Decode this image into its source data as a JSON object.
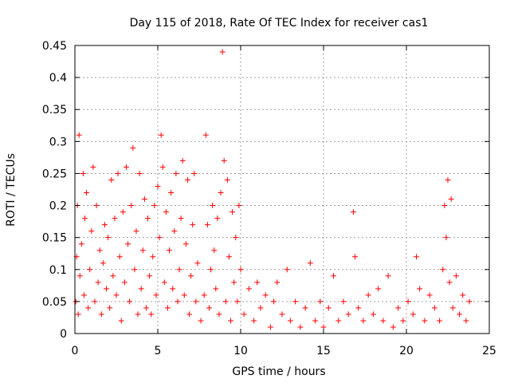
{
  "chart_data": {
    "type": "scatter",
    "title": "Day 115 of 2018, Rate Of TEC Index for receiver cas1",
    "xlabel": "GPS time / hours",
    "ylabel": "ROTI / TECUs",
    "xlim": [
      0,
      25
    ],
    "ylim": [
      0,
      0.45
    ],
    "xticks": [
      "0",
      "5",
      "10",
      "15",
      "20",
      "25"
    ],
    "yticks": [
      "0",
      "0.05",
      "0.1",
      "0.15",
      "0.2",
      "0.25",
      "0.3",
      "0.35",
      "0.4",
      "0.45"
    ],
    "grid": true,
    "marker": "+",
    "series_color": "#ff0000",
    "series": [
      {
        "name": "ROTI",
        "points": [
          [
            0.05,
            0.05
          ],
          [
            0.1,
            0.12
          ],
          [
            0.15,
            0.2
          ],
          [
            0.2,
            0.03
          ],
          [
            0.25,
            0.31
          ],
          [
            0.3,
            0.09
          ],
          [
            0.4,
            0.14
          ],
          [
            0.5,
            0.25
          ],
          [
            0.55,
            0.06
          ],
          [
            0.6,
            0.18
          ],
          [
            0.7,
            0.22
          ],
          [
            0.8,
            0.04
          ],
          [
            0.9,
            0.1
          ],
          [
            1.0,
            0.16
          ],
          [
            1.1,
            0.26
          ],
          [
            1.2,
            0.05
          ],
          [
            1.3,
            0.2
          ],
          [
            1.4,
            0.08
          ],
          [
            1.5,
            0.13
          ],
          [
            1.6,
            0.03
          ],
          [
            1.7,
            0.11
          ],
          [
            1.8,
            0.17
          ],
          [
            1.9,
            0.07
          ],
          [
            2.0,
            0.15
          ],
          [
            2.1,
            0.04
          ],
          [
            2.2,
            0.24
          ],
          [
            2.3,
            0.09
          ],
          [
            2.4,
            0.18
          ],
          [
            2.5,
            0.06
          ],
          [
            2.6,
            0.25
          ],
          [
            2.7,
            0.12
          ],
          [
            2.8,
            0.02
          ],
          [
            2.9,
            0.19
          ],
          [
            3.0,
            0.08
          ],
          [
            3.1,
            0.26
          ],
          [
            3.2,
            0.14
          ],
          [
            3.3,
            0.05
          ],
          [
            3.4,
            0.2
          ],
          [
            3.5,
            0.29
          ],
          [
            3.6,
            0.1
          ],
          [
            3.7,
            0.16
          ],
          [
            3.8,
            0.03
          ],
          [
            3.9,
            0.25
          ],
          [
            4.0,
            0.07
          ],
          [
            4.1,
            0.13
          ],
          [
            4.2,
            0.21
          ],
          [
            4.3,
            0.04
          ],
          [
            4.4,
            0.18
          ],
          [
            4.5,
            0.09
          ],
          [
            4.6,
            0.03
          ],
          [
            4.7,
            0.12
          ],
          [
            4.8,
            0.2
          ],
          [
            4.9,
            0.06
          ],
          [
            5.0,
            0.23
          ],
          [
            5.1,
            0.15
          ],
          [
            5.2,
            0.31
          ],
          [
            5.3,
            0.26
          ],
          [
            5.4,
            0.08
          ],
          [
            5.5,
            0.19
          ],
          [
            5.6,
            0.04
          ],
          [
            5.7,
            0.13
          ],
          [
            5.8,
            0.22
          ],
          [
            5.9,
            0.07
          ],
          [
            6.0,
            0.16
          ],
          [
            6.1,
            0.25
          ],
          [
            6.2,
            0.05
          ],
          [
            6.3,
            0.1
          ],
          [
            6.4,
            0.18
          ],
          [
            6.5,
            0.27
          ],
          [
            6.6,
            0.06
          ],
          [
            6.7,
            0.14
          ],
          [
            6.8,
            0.24
          ],
          [
            6.9,
            0.03
          ],
          [
            7.0,
            0.09
          ],
          [
            7.1,
            0.17
          ],
          [
            7.2,
            0.25
          ],
          [
            7.3,
            0.05
          ],
          [
            7.4,
            0.11
          ],
          [
            7.6,
            0.02
          ],
          [
            7.8,
            0.06
          ],
          [
            7.9,
            0.31
          ],
          [
            8.0,
            0.17
          ],
          [
            8.1,
            0.04
          ],
          [
            8.2,
            0.1
          ],
          [
            8.3,
            0.2
          ],
          [
            8.4,
            0.13
          ],
          [
            8.5,
            0.07
          ],
          [
            8.6,
            0.18
          ],
          [
            8.7,
            0.03
          ],
          [
            8.8,
            0.22
          ],
          [
            8.9,
            0.44
          ],
          [
            9.0,
            0.27
          ],
          [
            9.1,
            0.05
          ],
          [
            9.2,
            0.24
          ],
          [
            9.3,
            0.12
          ],
          [
            9.4,
            0.02
          ],
          [
            9.5,
            0.19
          ],
          [
            9.6,
            0.08
          ],
          [
            9.7,
            0.15
          ],
          [
            9.8,
            0.05
          ],
          [
            9.9,
            0.2
          ],
          [
            10.0,
            0.1
          ],
          [
            10.2,
            0.03
          ],
          [
            10.5,
            0.07
          ],
          [
            10.8,
            0.02
          ],
          [
            11.0,
            0.08
          ],
          [
            11.2,
            0.04
          ],
          [
            11.5,
            0.06
          ],
          [
            11.8,
            0.01
          ],
          [
            12.0,
            0.05
          ],
          [
            12.2,
            0.08
          ],
          [
            12.5,
            0.03
          ],
          [
            12.8,
            0.1
          ],
          [
            13.0,
            0.02
          ],
          [
            13.3,
            0.05
          ],
          [
            13.6,
            0.01
          ],
          [
            13.9,
            0.04
          ],
          [
            14.2,
            0.11
          ],
          [
            14.5,
            0.02
          ],
          [
            14.8,
            0.05
          ],
          [
            15.0,
            0.01
          ],
          [
            15.3,
            0.04
          ],
          [
            15.6,
            0.09
          ],
          [
            15.9,
            0.02
          ],
          [
            16.2,
            0.05
          ],
          [
            16.5,
            0.03
          ],
          [
            16.8,
            0.19
          ],
          [
            16.9,
            0.12
          ],
          [
            17.1,
            0.04
          ],
          [
            17.4,
            0.02
          ],
          [
            17.7,
            0.06
          ],
          [
            18.0,
            0.03
          ],
          [
            18.3,
            0.07
          ],
          [
            18.6,
            0.02
          ],
          [
            18.9,
            0.09
          ],
          [
            19.2,
            0.01
          ],
          [
            19.5,
            0.04
          ],
          [
            19.8,
            0.02
          ],
          [
            20.1,
            0.05
          ],
          [
            20.4,
            0.03
          ],
          [
            20.6,
            0.12
          ],
          [
            20.8,
            0.07
          ],
          [
            21.1,
            0.02
          ],
          [
            21.4,
            0.06
          ],
          [
            21.7,
            0.04
          ],
          [
            22.0,
            0.02
          ],
          [
            22.2,
            0.1
          ],
          [
            22.3,
            0.2
          ],
          [
            22.4,
            0.15
          ],
          [
            22.5,
            0.24
          ],
          [
            22.6,
            0.08
          ],
          [
            22.7,
            0.21
          ],
          [
            22.8,
            0.04
          ],
          [
            23.0,
            0.09
          ],
          [
            23.2,
            0.03
          ],
          [
            23.4,
            0.06
          ],
          [
            23.6,
            0.02
          ],
          [
            23.8,
            0.05
          ]
        ]
      }
    ]
  }
}
